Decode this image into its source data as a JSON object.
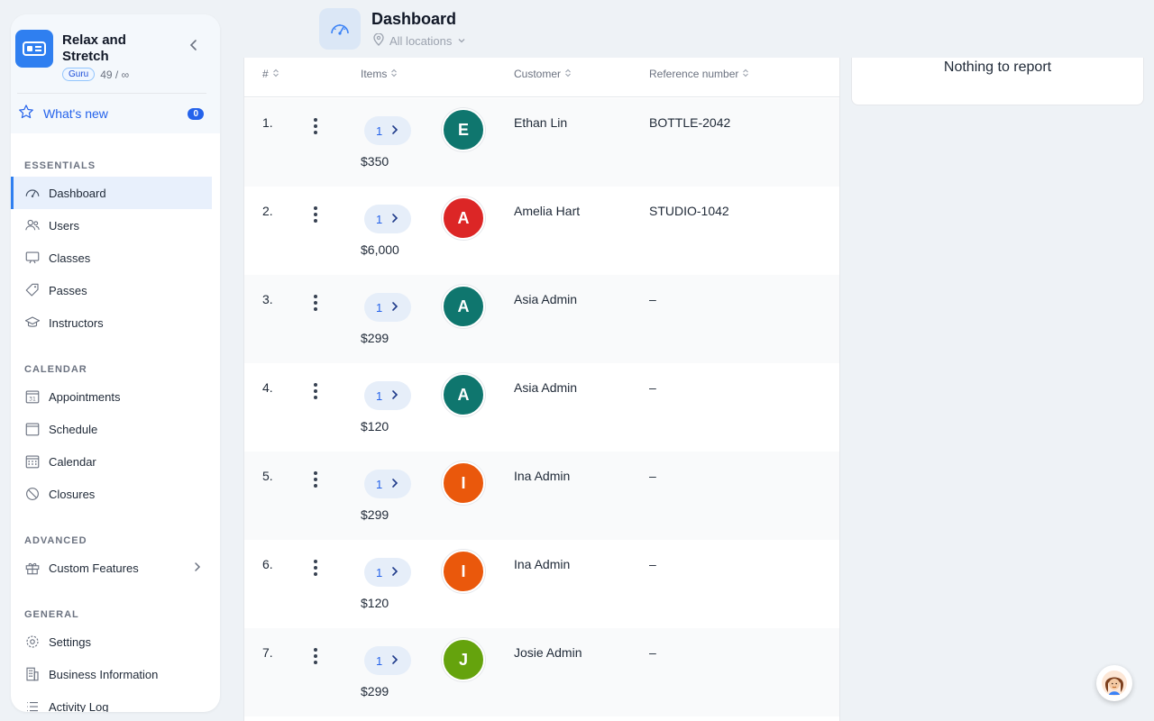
{
  "sidebar": {
    "brand": "Relax and Stretch",
    "plan_badge": "Guru",
    "plan_usage": "49 / ∞",
    "whats_new": {
      "label": "What's new",
      "count": "0"
    },
    "sections": {
      "essentials": "ESSENTIALS",
      "calendar": "CALENDAR",
      "advanced": "ADVANCED",
      "general": "GENERAL"
    },
    "items": {
      "dashboard": "Dashboard",
      "users": "Users",
      "classes": "Classes",
      "passes": "Passes",
      "instructors": "Instructors",
      "appointments": "Appointments",
      "schedule": "Schedule",
      "calendar": "Calendar",
      "closures": "Closures",
      "custom_features": "Custom Features",
      "settings": "Settings",
      "business_information": "Business Information",
      "activity_log": "Activity Log"
    }
  },
  "header": {
    "title": "Dashboard",
    "location": "All locations"
  },
  "table": {
    "columns": {
      "num": "#",
      "items": "Items",
      "customer": "Customer",
      "reference": "Reference number"
    },
    "rows": [
      {
        "num": "1.",
        "qty": "1",
        "price": "$350",
        "initial": "E",
        "color": "#0f766e",
        "customer": "Ethan Lin",
        "reference": "BOTTLE-2042"
      },
      {
        "num": "2.",
        "qty": "1",
        "price": "$6,000",
        "initial": "A",
        "color": "#dc2626",
        "customer": "Amelia Hart",
        "reference": "STUDIO-1042"
      },
      {
        "num": "3.",
        "qty": "1",
        "price": "$299",
        "initial": "A",
        "color": "#0f766e",
        "customer": "Asia Admin",
        "reference": "–"
      },
      {
        "num": "4.",
        "qty": "1",
        "price": "$120",
        "initial": "A",
        "color": "#0f766e",
        "customer": "Asia Admin",
        "reference": "–"
      },
      {
        "num": "5.",
        "qty": "1",
        "price": "$299",
        "initial": "I",
        "color": "#ea580c",
        "customer": "Ina Admin",
        "reference": "–"
      },
      {
        "num": "6.",
        "qty": "1",
        "price": "$120",
        "initial": "I",
        "color": "#ea580c",
        "customer": "Ina Admin",
        "reference": "–"
      },
      {
        "num": "7.",
        "qty": "1",
        "price": "$299",
        "initial": "J",
        "color": "#65a30d",
        "customer": "Josie Admin",
        "reference": "–"
      }
    ]
  },
  "panel": {
    "text": "Nothing to report"
  }
}
